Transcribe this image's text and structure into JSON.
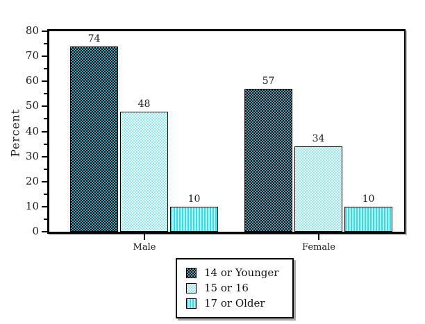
{
  "figure": {
    "background_color": "#ffffff",
    "frame_color": "#000000"
  },
  "colors": {
    "dark_series_fill": "#2aaec6",
    "dark_series_hatch": "#000000",
    "light_series_fill": "#ffffff",
    "light_series_hatch": "#86efef",
    "stripe_series_fill": "#26e2ee",
    "stripe_series_alt": "#c6fafa",
    "axis": "#000000",
    "text": "#1a1a1a"
  },
  "chart_data": {
    "type": "bar",
    "title": "",
    "xlabel": "",
    "ylabel": "Percent",
    "categories": [
      "Male",
      "Female"
    ],
    "series": [
      {
        "name": "14 or Younger",
        "pattern": "dark-crosshatch",
        "values": [
          74,
          57
        ]
      },
      {
        "name": "15 or 16",
        "pattern": "light-crosshatch",
        "values": [
          48,
          34
        ]
      },
      {
        "name": "17 or Older",
        "pattern": "vertical-stripes",
        "values": [
          10,
          10
        ]
      }
    ],
    "ylim": [
      0,
      80
    ],
    "ytick_step": 10,
    "yminor_step": 5,
    "ytick_labels": [
      "0",
      "10",
      "20",
      "30",
      "40",
      "50",
      "60",
      "70",
      "80"
    ],
    "bar_value_labels": [
      [
        74,
        48,
        10
      ],
      [
        57,
        34,
        10
      ]
    ],
    "grid": false,
    "legend_position": "bottom-center"
  },
  "legend": {
    "items": [
      {
        "label": "14 or Younger",
        "pattern": "dark-crosshatch"
      },
      {
        "label": "15 or 16",
        "pattern": "light-crosshatch"
      },
      {
        "label": "17 or Older",
        "pattern": "vertical-stripes"
      }
    ]
  }
}
